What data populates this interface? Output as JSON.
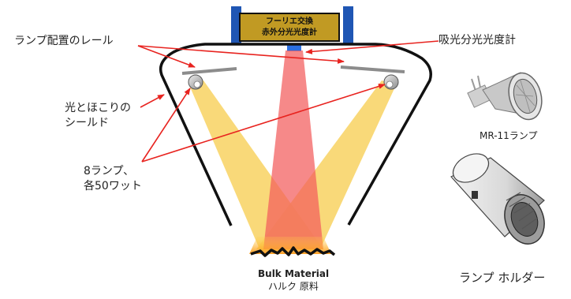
{
  "spectrometer": {
    "line1": "フーリエ交換",
    "line2": "赤外分光光度計"
  },
  "labels": {
    "rail": "ランプ配置のレール",
    "spectrophotometer": "吸光分光光度計",
    "shield_line1": "光とほこりの",
    "shield_line2": "シールド",
    "lamps_line1": "8ランプ、",
    "lamps_line2": "各50ワット",
    "mr11": "MR-11ランプ",
    "lamp_holder": "ランプ ホルダー",
    "bulk_en": "Bulk Material",
    "bulk_jp": "ハルク 原料"
  },
  "colors": {
    "arrow": "#e8231f",
    "beam_yellow": "#f8d262",
    "beam_red": "#f25c5c",
    "spectrometer_box": "#c19a23",
    "mount_blue": "#1f56b4",
    "bulk_glow": "#ffa21f"
  }
}
